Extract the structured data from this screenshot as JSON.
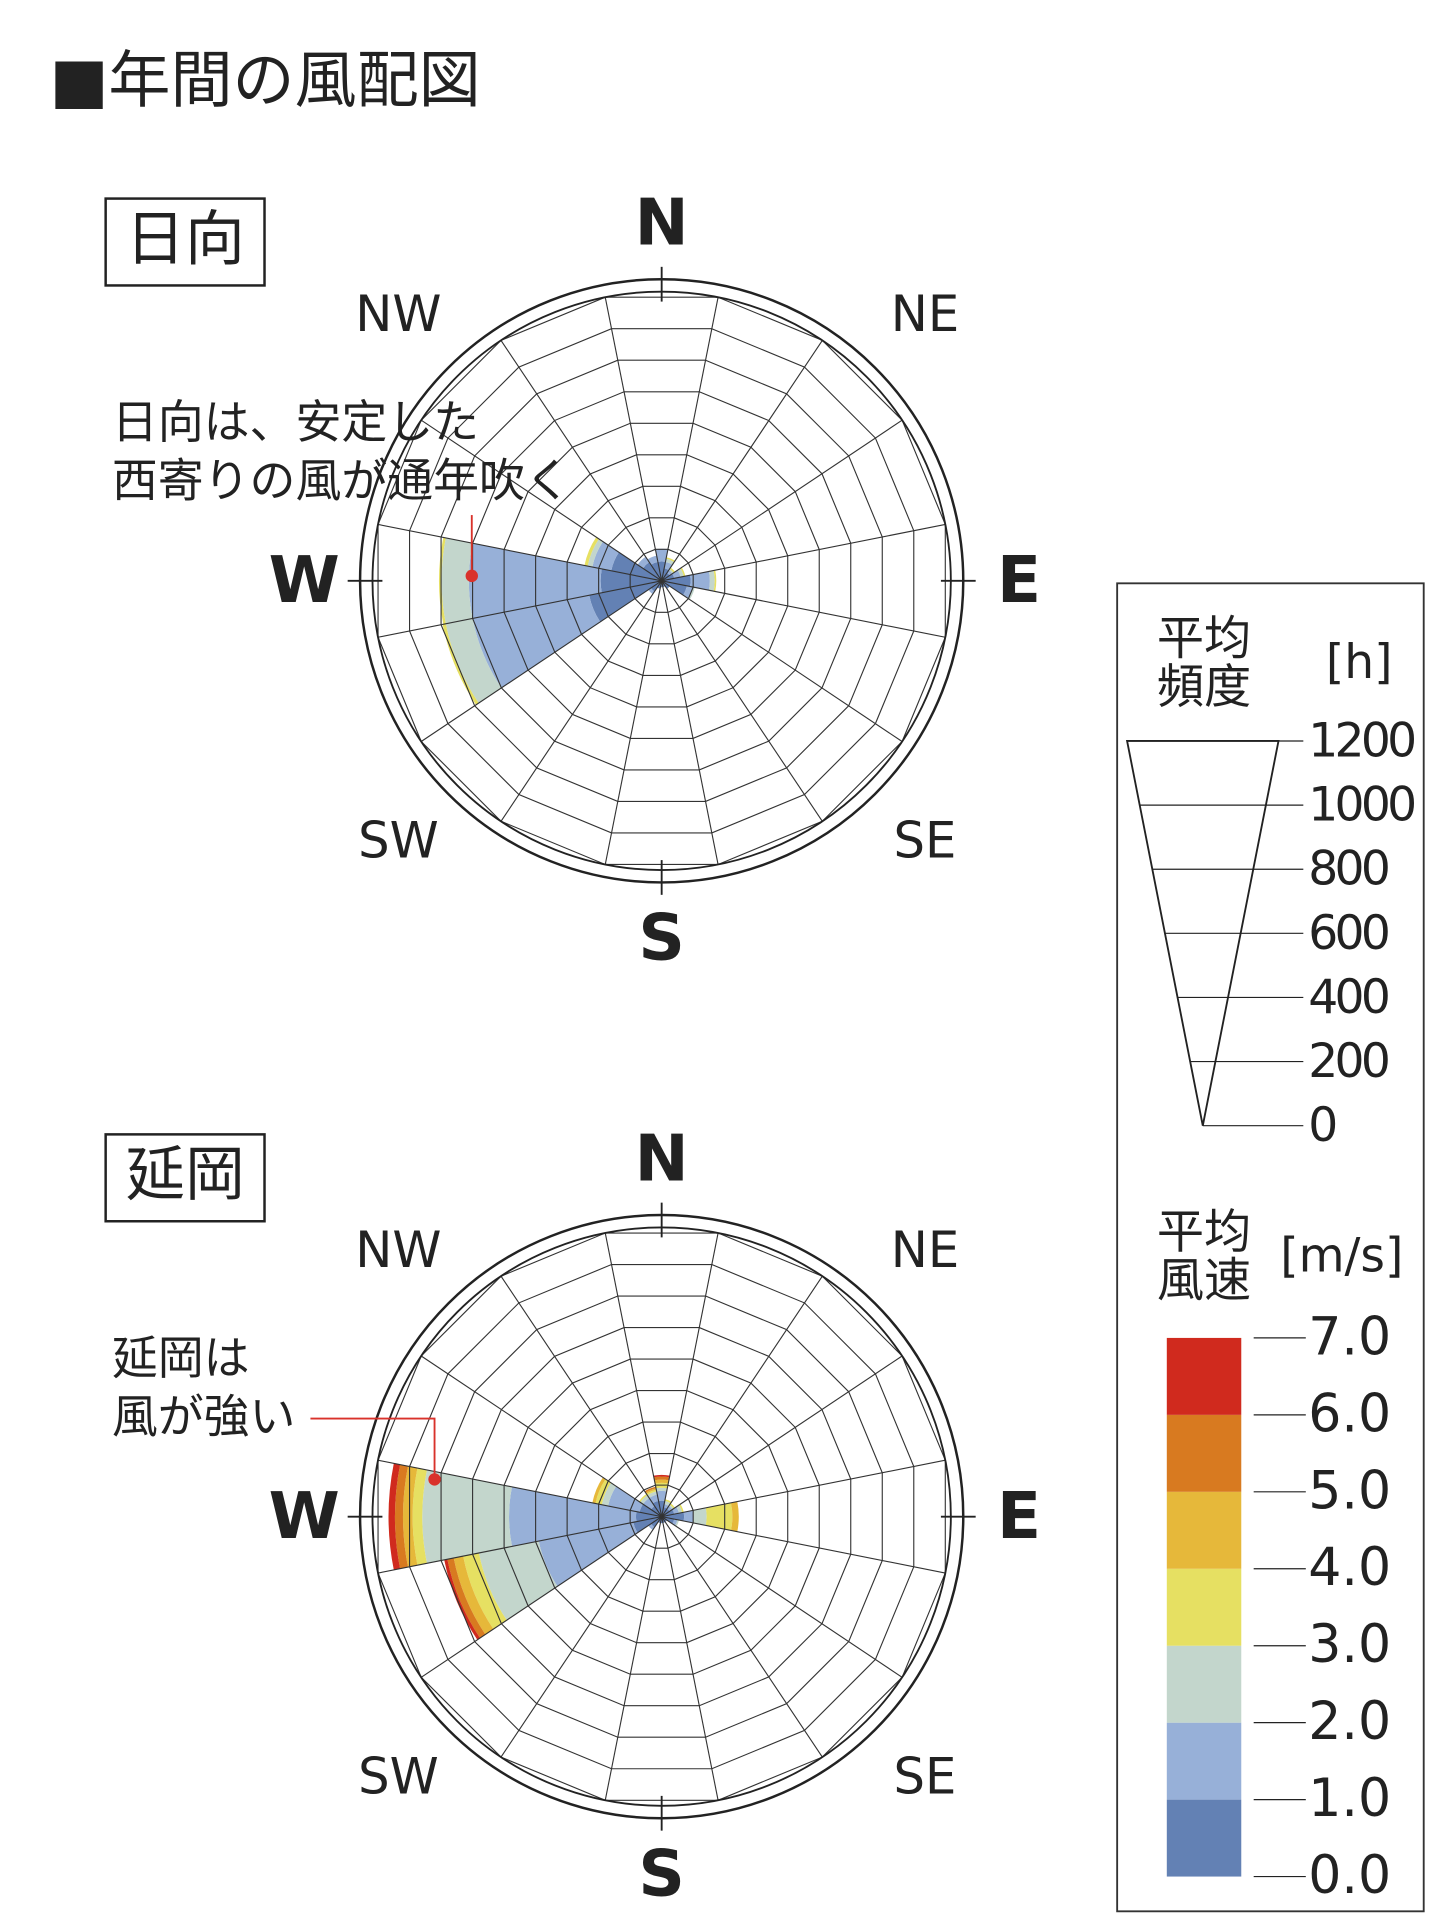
{
  "title": "■年間の風配図",
  "chart_data": [
    {
      "type": "windrose",
      "label": "日向",
      "annotation": [
        "日向は、安定した",
        "西寄りの風が通年吹く"
      ],
      "categories": [
        "N",
        null,
        "NE",
        null,
        "E",
        null,
        "SE",
        null,
        "S",
        null,
        "SW",
        null,
        "W",
        null,
        "NW",
        null
      ],
      "rlim": [
        0,
        900
      ],
      "rticks": [
        100,
        200,
        300,
        400,
        500,
        600,
        700,
        800,
        900
      ],
      "series": [
        {
          "color": "#6381b4",
          "values": [
            60,
            40,
            30,
            40,
            90,
            80,
            30,
            20,
            20,
            25,
            40,
            230,
            190,
            160,
            70,
            60
          ]
        },
        {
          "color": "#97b0d8",
          "values": [
            40,
            20,
            10,
            20,
            60,
            20,
            0,
            0,
            0,
            0,
            10,
            370,
            410,
            60,
            20,
            20
          ]
        },
        {
          "color": "#c3d6cc",
          "values": [
            0,
            10,
            5,
            10,
            15,
            5,
            0,
            0,
            0,
            0,
            0,
            85,
            85,
            15,
            0,
            0
          ]
        },
        {
          "color": "#e6e062",
          "values": [
            0,
            5,
            5,
            5,
            5,
            0,
            0,
            0,
            0,
            0,
            0,
            10,
            8,
            10,
            0,
            0
          ]
        },
        {
          "color": "#e6b83a",
          "values": [
            0,
            0,
            0,
            0,
            0,
            0,
            0,
            0,
            0,
            0,
            0,
            0,
            0,
            0,
            0,
            0
          ]
        },
        {
          "color": "#d87a20",
          "values": [
            0,
            0,
            0,
            0,
            0,
            0,
            0,
            0,
            0,
            0,
            0,
            0,
            0,
            0,
            0,
            0
          ]
        },
        {
          "color": "#d02a1e",
          "values": [
            0,
            0,
            0,
            0,
            0,
            0,
            0,
            0,
            0,
            0,
            0,
            0,
            0,
            0,
            0,
            0
          ]
        }
      ]
    },
    {
      "type": "windrose",
      "label": "延岡",
      "annotation": [
        "延岡は",
        "風が強い"
      ],
      "categories": [
        "N",
        null,
        "NE",
        null,
        "E",
        null,
        "SE",
        null,
        "S",
        null,
        "SW",
        null,
        "W",
        null,
        "NW",
        null
      ],
      "rlim": [
        0,
        900
      ],
      "rticks": [
        100,
        200,
        300,
        400,
        500,
        600,
        700,
        800,
        900
      ],
      "series": [
        {
          "color": "#6381b4",
          "values": [
            50,
            30,
            30,
            40,
            70,
            40,
            20,
            20,
            20,
            20,
            40,
            90,
            80,
            70,
            40,
            50
          ]
        },
        {
          "color": "#97b0d8",
          "values": [
            30,
            10,
            10,
            15,
            30,
            10,
            0,
            0,
            0,
            0,
            10,
            300,
            395,
            100,
            30,
            20
          ]
        },
        {
          "color": "#c3d6cc",
          "values": [
            10,
            10,
            5,
            10,
            40,
            5,
            0,
            0,
            0,
            0,
            0,
            190,
            270,
            20,
            10,
            10
          ]
        },
        {
          "color": "#e6e062",
          "values": [
            15,
            5,
            5,
            5,
            80,
            0,
            0,
            0,
            0,
            0,
            0,
            50,
            30,
            20,
            5,
            5
          ]
        },
        {
          "color": "#e6b83a",
          "values": [
            10,
            0,
            0,
            0,
            20,
            0,
            0,
            0,
            0,
            0,
            0,
            30,
            30,
            10,
            0,
            5
          ]
        },
        {
          "color": "#d87a20",
          "values": [
            10,
            0,
            0,
            0,
            0,
            0,
            0,
            0,
            0,
            0,
            0,
            20,
            25,
            0,
            0,
            5
          ]
        },
        {
          "color": "#d02a1e",
          "values": [
            5,
            0,
            0,
            0,
            0,
            0,
            0,
            0,
            0,
            0,
            0,
            10,
            20,
            0,
            0,
            0
          ]
        }
      ]
    }
  ],
  "legend": {
    "freq_title": [
      "平均",
      "頻度"
    ],
    "freq_unit": "[h]",
    "freq_lim": [
      0,
      1200
    ],
    "freq_ticks": [
      0,
      200,
      400,
      600,
      800,
      1000,
      1200
    ],
    "speed_title": [
      "平均",
      "風速"
    ],
    "speed_unit": "[m/s]",
    "speed_lim": [
      0,
      7
    ],
    "speed_ticks": [
      {
        "value": 0,
        "label": "0.0"
      },
      {
        "value": 1,
        "label": "1.0"
      },
      {
        "value": 2,
        "label": "2.0"
      },
      {
        "value": 3,
        "label": "3.0"
      },
      {
        "value": 4,
        "label": "4.0"
      },
      {
        "value": 5,
        "label": "5.0"
      },
      {
        "value": 6,
        "label": "6.0"
      },
      {
        "value": 7,
        "label": "7.0"
      }
    ]
  }
}
